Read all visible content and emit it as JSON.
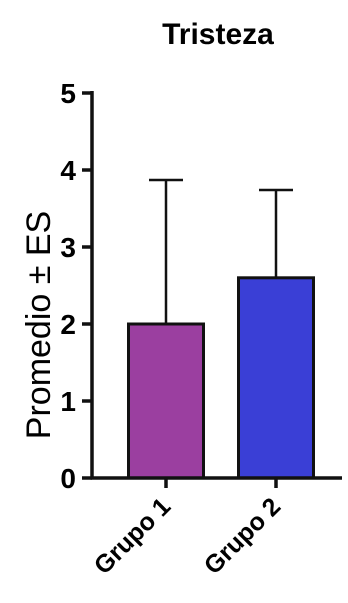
{
  "chart_data": {
    "type": "bar",
    "title": "Tristeza",
    "xlabel": "",
    "ylabel": "Promedio ± ES",
    "categories": [
      "Grupo 1",
      "Grupo 2"
    ],
    "values": [
      2.0,
      2.6
    ],
    "error_upper": [
      3.87,
      3.74
    ],
    "ylim": [
      0,
      5
    ],
    "yticks": [
      "0",
      "1",
      "2",
      "3",
      "4",
      "5"
    ],
    "grid": false,
    "colors": [
      "#9b3fa0",
      "#3a3fd6"
    ],
    "edge_color": "#111111"
  }
}
